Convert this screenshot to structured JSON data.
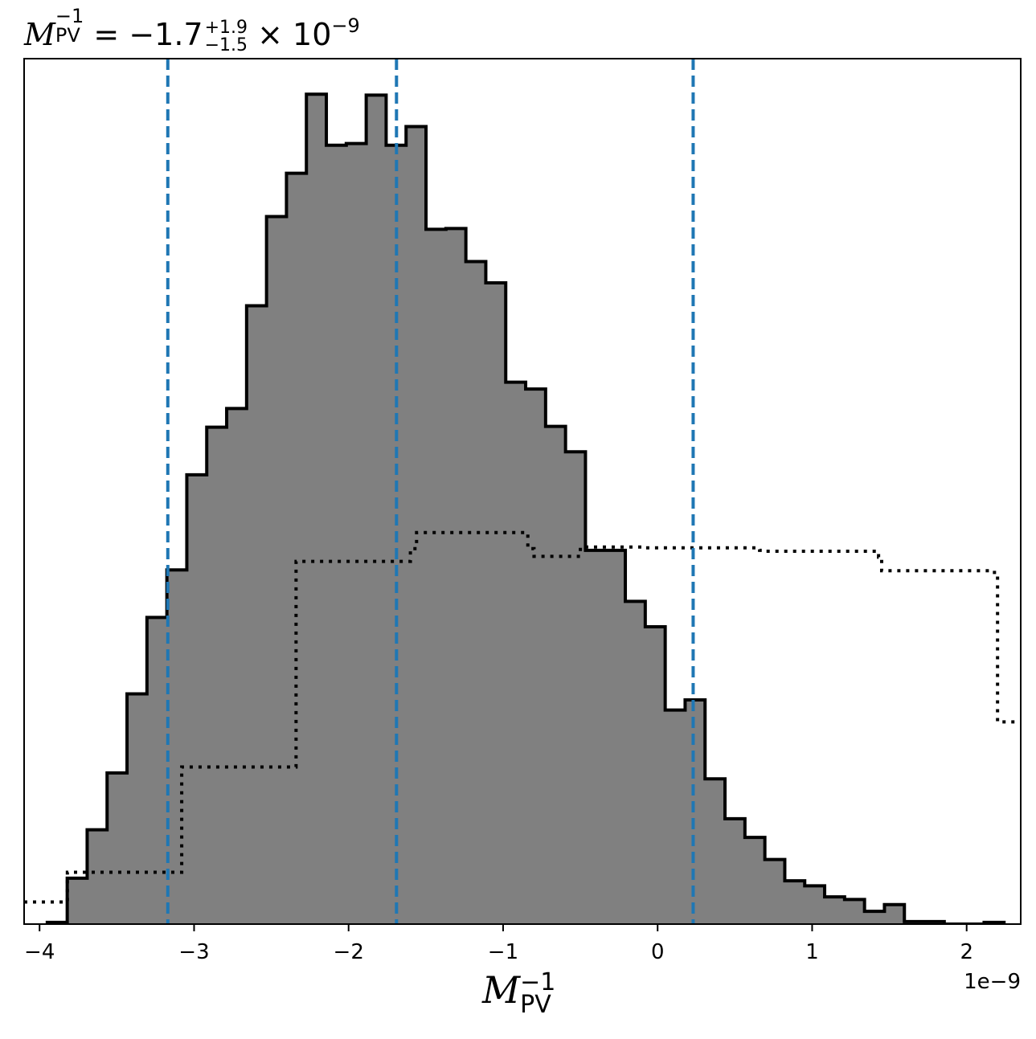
{
  "chart_data": {
    "type": "histogram",
    "title": "M_PV^{-1} = -1.7^{+1.9}_{-1.5} × 10^{-9}",
    "title_parts": {
      "symbol": "M",
      "sub": "PV",
      "sup": "−1",
      "main": "= −1.7",
      "upper": "+1.9",
      "lower": "−1.5",
      "times": "× 10",
      "exp": "−9"
    },
    "xlabel": "M_PV^{-1}",
    "xlabel_parts": {
      "symbol": "M",
      "sub": "PV",
      "sup": "−1"
    },
    "offset_text": "1e−9",
    "xlim": [
      -4.1,
      2.35
    ],
    "ylim": [
      0,
      1.0
    ],
    "xticks": [
      -4,
      -3,
      -2,
      -1,
      0,
      1,
      2
    ],
    "xtick_labels": [
      "−4",
      "−3",
      "−2",
      "−1",
      "0",
      "1",
      "2"
    ],
    "grid": false,
    "legend": "none",
    "colors": {
      "fill": "#808080",
      "outline": "#000000",
      "quantile_lines": "#1f77b4"
    },
    "posterior": {
      "bin_start": -3.95,
      "bin_width": 0.129,
      "heights": [
        0.002,
        0.054,
        0.111,
        0.178,
        0.271,
        0.361,
        0.417,
        0.529,
        0.585,
        0.607,
        0.728,
        0.833,
        0.884,
        0.977,
        0.917,
        0.919,
        0.976,
        0.917,
        0.939,
        0.818,
        0.819,
        0.78,
        0.755,
        0.638,
        0.63,
        0.586,
        0.556,
        0.44,
        0.44,
        0.38,
        0.35,
        0.252,
        0.264,
        0.171,
        0.124,
        0.102,
        0.076,
        0.051,
        0.045,
        0.032,
        0.029,
        0.015,
        0.023,
        0.003,
        0.003,
        0.0,
        0.0,
        0.002
      ]
    },
    "prior": {
      "edges": [
        -4.1,
        -3.82,
        -3.08,
        -2.34,
        -1.6,
        -1.56,
        -0.84,
        -0.8,
        -0.5,
        -0.08,
        0.66,
        0.68,
        1.43,
        1.45,
        2.18,
        2.2,
        2.35
      ],
      "heights": [
        0.026,
        0.061,
        0.185,
        0.427,
        0.442,
        0.461,
        0.442,
        0.433,
        0.444,
        0.443,
        0.44,
        0.439,
        0.432,
        0.416,
        0.411,
        0.238
      ]
    },
    "quantiles": {
      "q16": -3.17,
      "median": -1.69,
      "q84": 0.23
    }
  }
}
